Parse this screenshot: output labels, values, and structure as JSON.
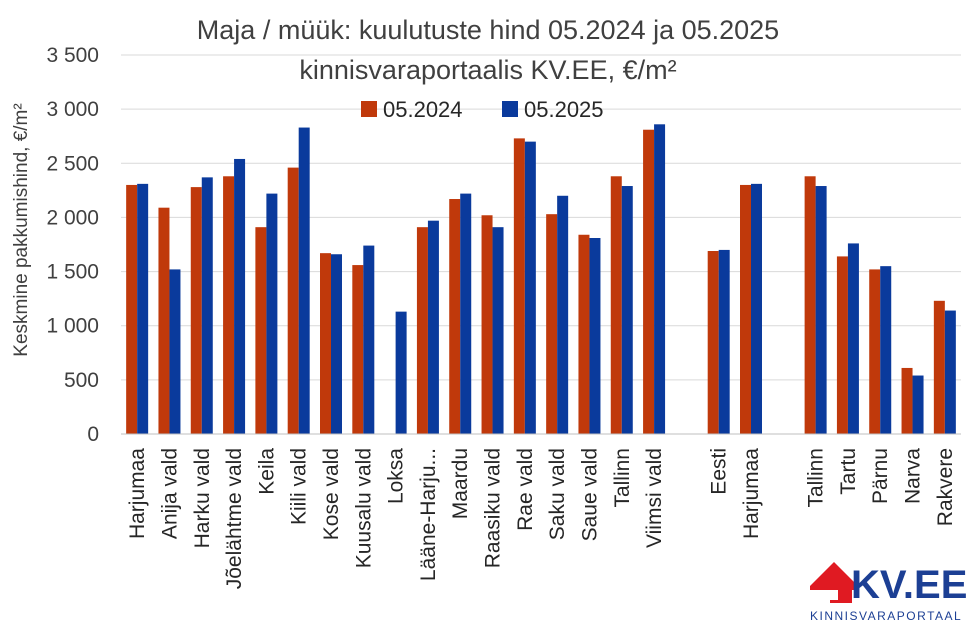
{
  "chart_data": {
    "type": "bar",
    "title": "Maja / müük: kuulutuste hind 05.2024 ja 05.2025",
    "subtitle": "kinnisvaraportaalis KV.EE, €/m²",
    "xlabel": "",
    "ylabel": "Keskmine pakkumishind, €/m²",
    "ylim": [
      0,
      3500
    ],
    "yticks": [
      0,
      500,
      1000,
      1500,
      2000,
      2500,
      3000,
      3500
    ],
    "ytick_labels": [
      "0",
      "500",
      "1 000",
      "1 500",
      "2 000",
      "2 500",
      "3 000",
      "3 500"
    ],
    "grid": true,
    "legend_position": "top-center",
    "categories": [
      "Harjumaa",
      "Anija vald",
      "Harku vald",
      "Jõelähtme vald",
      "Keila",
      "Kiili vald",
      "Kose vald",
      "Kuusalu vald",
      "Loksa",
      "Lääne-Harju...",
      "Maardu",
      "Raasiku vald",
      "Rae vald",
      "Saku vald",
      "Saue vald",
      "Tallinn",
      "Viimsi vald",
      "",
      "Eesti",
      "Harjumaa",
      "",
      "Tallinn",
      "Tartu",
      "Pärnu",
      "Narva",
      "Rakvere"
    ],
    "series": [
      {
        "name": "05.2024",
        "color": "#c0390b",
        "values": [
          2300,
          2090,
          2280,
          2380,
          1910,
          2460,
          1670,
          1560,
          null,
          1910,
          2170,
          2020,
          2730,
          2030,
          1840,
          2380,
          2810,
          null,
          1690,
          2300,
          null,
          2380,
          1640,
          1520,
          610,
          1230
        ]
      },
      {
        "name": "05.2025",
        "color": "#0a3a9c",
        "values": [
          2310,
          1520,
          2370,
          2540,
          2220,
          2830,
          1660,
          1740,
          1130,
          1970,
          2220,
          1910,
          2700,
          2200,
          1810,
          2290,
          2860,
          null,
          1700,
          2310,
          null,
          2290,
          1760,
          1550,
          540,
          1140
        ]
      }
    ]
  },
  "logo": {
    "name": "KV.EE",
    "tagline": "KINNISVARAPORTAAL",
    "color": "#1c3f94",
    "accent": "#e01a22",
    "icon": "house-icon"
  }
}
